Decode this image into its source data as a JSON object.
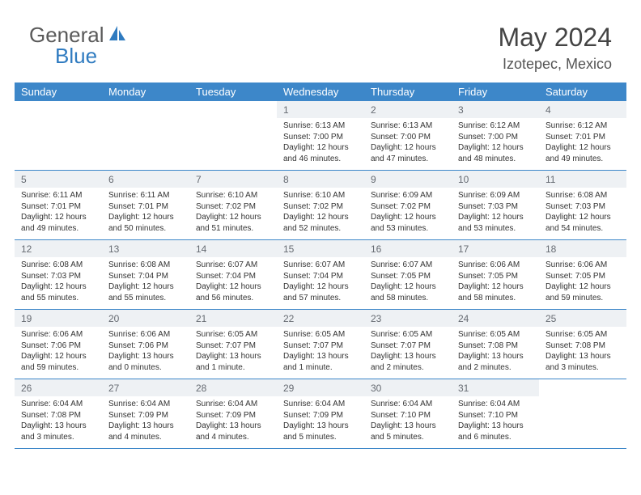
{
  "logo": {
    "text1": "General",
    "text2": "Blue"
  },
  "title": "May 2024",
  "location": "Izotepec, Mexico",
  "colors": {
    "header_bar": "#3d87c9",
    "daynum_bg": "#eef1f4",
    "border": "#3d87c9",
    "logo_gray": "#5a5a5a",
    "logo_blue": "#2f7bc0"
  },
  "weekdays": [
    "Sunday",
    "Monday",
    "Tuesday",
    "Wednesday",
    "Thursday",
    "Friday",
    "Saturday"
  ],
  "weeks": [
    [
      {
        "n": "",
        "sr": "",
        "ss": "",
        "dl1": "",
        "dl2": ""
      },
      {
        "n": "",
        "sr": "",
        "ss": "",
        "dl1": "",
        "dl2": ""
      },
      {
        "n": "",
        "sr": "",
        "ss": "",
        "dl1": "",
        "dl2": ""
      },
      {
        "n": "1",
        "sr": "Sunrise: 6:13 AM",
        "ss": "Sunset: 7:00 PM",
        "dl1": "Daylight: 12 hours",
        "dl2": "and 46 minutes."
      },
      {
        "n": "2",
        "sr": "Sunrise: 6:13 AM",
        "ss": "Sunset: 7:00 PM",
        "dl1": "Daylight: 12 hours",
        "dl2": "and 47 minutes."
      },
      {
        "n": "3",
        "sr": "Sunrise: 6:12 AM",
        "ss": "Sunset: 7:00 PM",
        "dl1": "Daylight: 12 hours",
        "dl2": "and 48 minutes."
      },
      {
        "n": "4",
        "sr": "Sunrise: 6:12 AM",
        "ss": "Sunset: 7:01 PM",
        "dl1": "Daylight: 12 hours",
        "dl2": "and 49 minutes."
      }
    ],
    [
      {
        "n": "5",
        "sr": "Sunrise: 6:11 AM",
        "ss": "Sunset: 7:01 PM",
        "dl1": "Daylight: 12 hours",
        "dl2": "and 49 minutes."
      },
      {
        "n": "6",
        "sr": "Sunrise: 6:11 AM",
        "ss": "Sunset: 7:01 PM",
        "dl1": "Daylight: 12 hours",
        "dl2": "and 50 minutes."
      },
      {
        "n": "7",
        "sr": "Sunrise: 6:10 AM",
        "ss": "Sunset: 7:02 PM",
        "dl1": "Daylight: 12 hours",
        "dl2": "and 51 minutes."
      },
      {
        "n": "8",
        "sr": "Sunrise: 6:10 AM",
        "ss": "Sunset: 7:02 PM",
        "dl1": "Daylight: 12 hours",
        "dl2": "and 52 minutes."
      },
      {
        "n": "9",
        "sr": "Sunrise: 6:09 AM",
        "ss": "Sunset: 7:02 PM",
        "dl1": "Daylight: 12 hours",
        "dl2": "and 53 minutes."
      },
      {
        "n": "10",
        "sr": "Sunrise: 6:09 AM",
        "ss": "Sunset: 7:03 PM",
        "dl1": "Daylight: 12 hours",
        "dl2": "and 53 minutes."
      },
      {
        "n": "11",
        "sr": "Sunrise: 6:08 AM",
        "ss": "Sunset: 7:03 PM",
        "dl1": "Daylight: 12 hours",
        "dl2": "and 54 minutes."
      }
    ],
    [
      {
        "n": "12",
        "sr": "Sunrise: 6:08 AM",
        "ss": "Sunset: 7:03 PM",
        "dl1": "Daylight: 12 hours",
        "dl2": "and 55 minutes."
      },
      {
        "n": "13",
        "sr": "Sunrise: 6:08 AM",
        "ss": "Sunset: 7:04 PM",
        "dl1": "Daylight: 12 hours",
        "dl2": "and 55 minutes."
      },
      {
        "n": "14",
        "sr": "Sunrise: 6:07 AM",
        "ss": "Sunset: 7:04 PM",
        "dl1": "Daylight: 12 hours",
        "dl2": "and 56 minutes."
      },
      {
        "n": "15",
        "sr": "Sunrise: 6:07 AM",
        "ss": "Sunset: 7:04 PM",
        "dl1": "Daylight: 12 hours",
        "dl2": "and 57 minutes."
      },
      {
        "n": "16",
        "sr": "Sunrise: 6:07 AM",
        "ss": "Sunset: 7:05 PM",
        "dl1": "Daylight: 12 hours",
        "dl2": "and 58 minutes."
      },
      {
        "n": "17",
        "sr": "Sunrise: 6:06 AM",
        "ss": "Sunset: 7:05 PM",
        "dl1": "Daylight: 12 hours",
        "dl2": "and 58 minutes."
      },
      {
        "n": "18",
        "sr": "Sunrise: 6:06 AM",
        "ss": "Sunset: 7:05 PM",
        "dl1": "Daylight: 12 hours",
        "dl2": "and 59 minutes."
      }
    ],
    [
      {
        "n": "19",
        "sr": "Sunrise: 6:06 AM",
        "ss": "Sunset: 7:06 PM",
        "dl1": "Daylight: 12 hours",
        "dl2": "and 59 minutes."
      },
      {
        "n": "20",
        "sr": "Sunrise: 6:06 AM",
        "ss": "Sunset: 7:06 PM",
        "dl1": "Daylight: 13 hours",
        "dl2": "and 0 minutes."
      },
      {
        "n": "21",
        "sr": "Sunrise: 6:05 AM",
        "ss": "Sunset: 7:07 PM",
        "dl1": "Daylight: 13 hours",
        "dl2": "and 1 minute."
      },
      {
        "n": "22",
        "sr": "Sunrise: 6:05 AM",
        "ss": "Sunset: 7:07 PM",
        "dl1": "Daylight: 13 hours",
        "dl2": "and 1 minute."
      },
      {
        "n": "23",
        "sr": "Sunrise: 6:05 AM",
        "ss": "Sunset: 7:07 PM",
        "dl1": "Daylight: 13 hours",
        "dl2": "and 2 minutes."
      },
      {
        "n": "24",
        "sr": "Sunrise: 6:05 AM",
        "ss": "Sunset: 7:08 PM",
        "dl1": "Daylight: 13 hours",
        "dl2": "and 2 minutes."
      },
      {
        "n": "25",
        "sr": "Sunrise: 6:05 AM",
        "ss": "Sunset: 7:08 PM",
        "dl1": "Daylight: 13 hours",
        "dl2": "and 3 minutes."
      }
    ],
    [
      {
        "n": "26",
        "sr": "Sunrise: 6:04 AM",
        "ss": "Sunset: 7:08 PM",
        "dl1": "Daylight: 13 hours",
        "dl2": "and 3 minutes."
      },
      {
        "n": "27",
        "sr": "Sunrise: 6:04 AM",
        "ss": "Sunset: 7:09 PM",
        "dl1": "Daylight: 13 hours",
        "dl2": "and 4 minutes."
      },
      {
        "n": "28",
        "sr": "Sunrise: 6:04 AM",
        "ss": "Sunset: 7:09 PM",
        "dl1": "Daylight: 13 hours",
        "dl2": "and 4 minutes."
      },
      {
        "n": "29",
        "sr": "Sunrise: 6:04 AM",
        "ss": "Sunset: 7:09 PM",
        "dl1": "Daylight: 13 hours",
        "dl2": "and 5 minutes."
      },
      {
        "n": "30",
        "sr": "Sunrise: 6:04 AM",
        "ss": "Sunset: 7:10 PM",
        "dl1": "Daylight: 13 hours",
        "dl2": "and 5 minutes."
      },
      {
        "n": "31",
        "sr": "Sunrise: 6:04 AM",
        "ss": "Sunset: 7:10 PM",
        "dl1": "Daylight: 13 hours",
        "dl2": "and 6 minutes."
      },
      {
        "n": "",
        "sr": "",
        "ss": "",
        "dl1": "",
        "dl2": ""
      }
    ]
  ]
}
